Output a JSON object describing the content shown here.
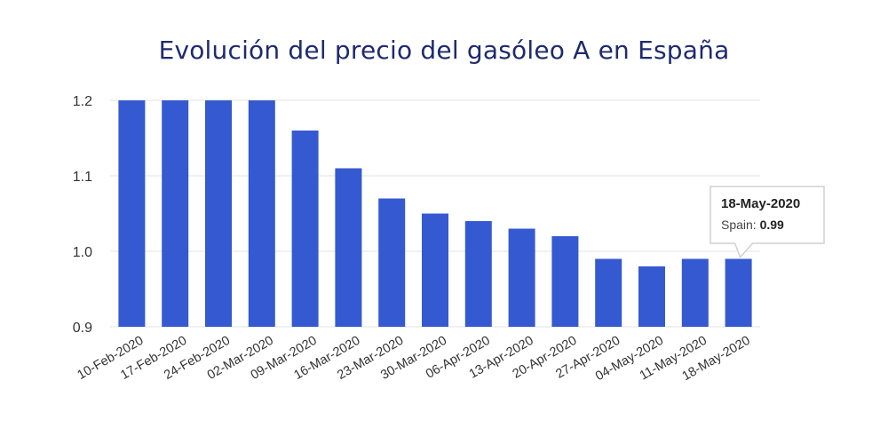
{
  "chart_data": {
    "type": "bar",
    "title": "Evolución del precio del gasóleo A en España",
    "xlabel": "",
    "ylabel": "",
    "ylim": [
      0.9,
      1.2
    ],
    "yticks": [
      "0.9",
      "1.0",
      "1.1",
      "1.2"
    ],
    "grid": true,
    "bar_color": "#3559d0",
    "categories": [
      "10-Feb-2020",
      "17-Feb-2020",
      "24-Feb-2020",
      "02-Mar-2020",
      "09-Mar-2020",
      "16-Mar-2020",
      "23-Mar-2020",
      "30-Mar-2020",
      "06-Apr-2020",
      "13-Apr-2020",
      "20-Apr-2020",
      "27-Apr-2020",
      "04-May-2020",
      "11-May-2020",
      "18-May-2020"
    ],
    "series": [
      {
        "name": "Spain",
        "values": [
          1.2,
          1.2,
          1.2,
          1.2,
          1.16,
          1.11,
          1.07,
          1.05,
          1.04,
          1.03,
          1.02,
          0.99,
          0.98,
          0.99,
          0.99
        ]
      }
    ],
    "tooltip": {
      "date": "18-May-2020",
      "label": "Spain:",
      "value": "0.99"
    }
  }
}
